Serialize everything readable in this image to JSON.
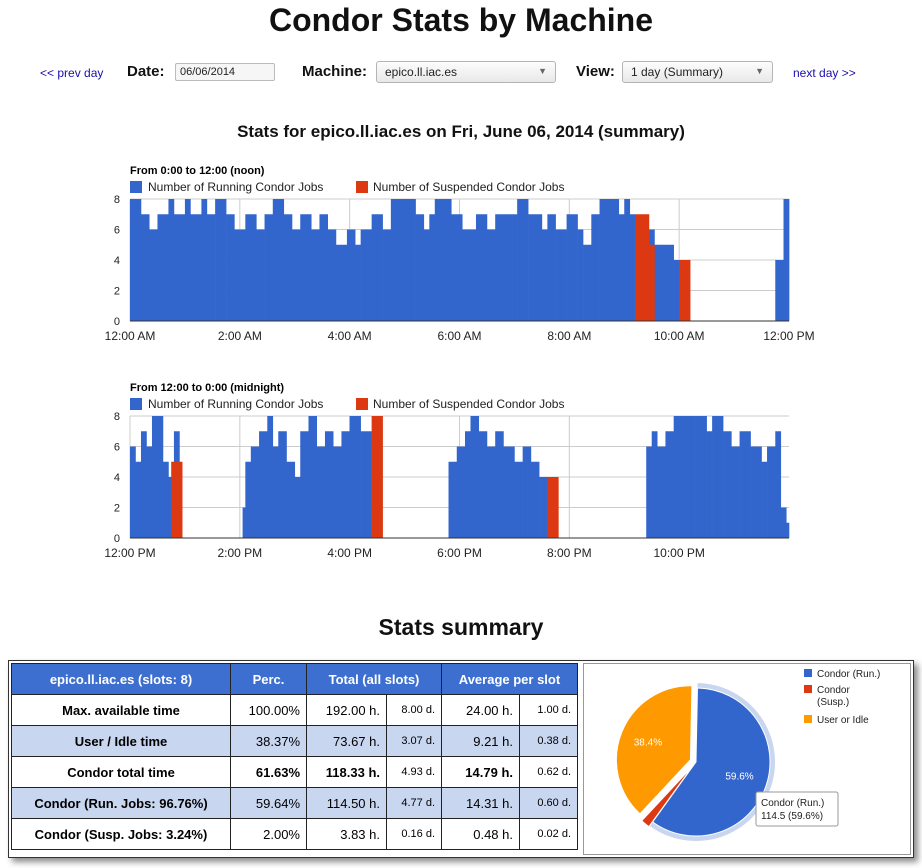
{
  "page": {
    "title": "Condor Stats by Machine"
  },
  "nav": {
    "prev_label": "<< prev day",
    "next_label": "next day >>",
    "date_label": "Date:",
    "date_value": "06/06/2014",
    "machine_label": "Machine:",
    "machine_selected": "epico.ll.iac.es",
    "view_label": "View:",
    "view_selected": "1 day (Summary)"
  },
  "stats_title": "Stats for epico.ll.iac.es on Fri, June 06, 2014 (summary)",
  "charts": [
    {
      "heading": "From 0:00 to 12:00 (noon)",
      "legend": [
        "Number of Running Condor Jobs",
        "Number of Suspended Condor Jobs"
      ]
    },
    {
      "heading": "From 12:00 to 0:00 (midnight)",
      "legend": [
        "Number of Running Condor Jobs",
        "Number of Suspended Condor Jobs"
      ]
    }
  ],
  "colors": {
    "running": "#3366cc",
    "suspended": "#dc3912",
    "idle": "#ff9900",
    "header": "#3d6fd0",
    "alt_row": "#c9d6f0"
  },
  "chart_data": [
    {
      "type": "area",
      "title": "From 0:00 to 12:00 (noon)",
      "x_ticks": [
        "12:00 AM",
        "2:00 AM",
        "4:00 AM",
        "6:00 AM",
        "8:00 AM",
        "10:00 AM",
        "12:00 PM"
      ],
      "y_ticks": [
        "0",
        "2",
        "4",
        "6",
        "8"
      ],
      "ylim": [
        0,
        8
      ],
      "xlim_hours": [
        0,
        12
      ],
      "series": [
        {
          "name": "Number of Running Condor Jobs",
          "segments": [
            [
              0.0,
              0.2,
              8
            ],
            [
              0.2,
              0.35,
              7
            ],
            [
              0.35,
              0.5,
              6
            ],
            [
              0.5,
              0.7,
              7
            ],
            [
              0.7,
              0.8,
              8
            ],
            [
              0.8,
              1.0,
              7
            ],
            [
              1.0,
              1.1,
              8
            ],
            [
              1.1,
              1.3,
              7
            ],
            [
              1.3,
              1.4,
              8
            ],
            [
              1.4,
              1.55,
              7
            ],
            [
              1.55,
              1.75,
              8
            ],
            [
              1.75,
              1.9,
              7
            ],
            [
              1.9,
              2.1,
              6
            ],
            [
              2.1,
              2.3,
              7
            ],
            [
              2.3,
              2.45,
              6
            ],
            [
              2.45,
              2.6,
              7
            ],
            [
              2.6,
              2.8,
              8
            ],
            [
              2.8,
              2.95,
              7
            ],
            [
              2.95,
              3.1,
              6
            ],
            [
              3.1,
              3.3,
              7
            ],
            [
              3.3,
              3.45,
              6
            ],
            [
              3.45,
              3.6,
              7
            ],
            [
              3.6,
              3.75,
              6
            ],
            [
              3.75,
              3.95,
              5
            ],
            [
              3.95,
              4.1,
              6
            ],
            [
              4.1,
              4.2,
              5
            ],
            [
              4.2,
              4.4,
              6
            ],
            [
              4.4,
              4.6,
              7
            ],
            [
              4.6,
              4.75,
              6
            ],
            [
              4.75,
              5.2,
              8
            ],
            [
              5.2,
              5.35,
              7
            ],
            [
              5.35,
              5.45,
              6
            ],
            [
              5.45,
              5.55,
              7
            ],
            [
              5.55,
              5.85,
              8
            ],
            [
              5.85,
              6.05,
              7
            ],
            [
              6.05,
              6.3,
              6
            ],
            [
              6.3,
              6.5,
              7
            ],
            [
              6.5,
              6.65,
              6
            ],
            [
              6.65,
              6.85,
              7
            ],
            [
              6.85,
              7.05,
              7
            ],
            [
              7.05,
              7.25,
              8
            ],
            [
              7.25,
              7.5,
              7
            ],
            [
              7.5,
              7.6,
              6
            ],
            [
              7.6,
              7.75,
              7
            ],
            [
              7.75,
              7.95,
              6
            ],
            [
              7.95,
              8.15,
              7
            ],
            [
              8.15,
              8.25,
              6
            ],
            [
              8.25,
              8.4,
              5
            ],
            [
              8.4,
              8.55,
              7
            ],
            [
              8.55,
              8.9,
              8
            ],
            [
              8.9,
              9.0,
              7
            ],
            [
              9.0,
              9.1,
              8
            ],
            [
              9.1,
              9.2,
              7
            ],
            [
              9.45,
              9.55,
              6
            ],
            [
              9.55,
              9.7,
              5
            ],
            [
              9.7,
              9.9,
              5
            ],
            [
              9.9,
              10.0,
              4
            ],
            [
              11.75,
              11.9,
              4
            ],
            [
              11.9,
              12.0,
              8
            ]
          ]
        },
        {
          "name": "Number of Suspended Condor Jobs",
          "segments": [
            [
              9.2,
              9.45,
              7
            ],
            [
              9.45,
              9.55,
              5
            ],
            [
              10.0,
              10.2,
              4
            ]
          ]
        }
      ]
    },
    {
      "type": "area",
      "title": "From 12:00 to 0:00 (midnight)",
      "x_ticks": [
        "12:00 PM",
        "2:00 PM",
        "4:00 PM",
        "6:00 PM",
        "8:00 PM",
        "10:00 PM"
      ],
      "y_ticks": [
        "0",
        "2",
        "4",
        "6",
        "8"
      ],
      "ylim": [
        0,
        8
      ],
      "xlim_hours": [
        12,
        24
      ],
      "series": [
        {
          "name": "Number of Running Condor Jobs",
          "segments": [
            [
              12.0,
              12.1,
              6
            ],
            [
              12.1,
              12.2,
              5
            ],
            [
              12.2,
              12.3,
              7
            ],
            [
              12.3,
              12.4,
              6
            ],
            [
              12.4,
              12.5,
              8
            ],
            [
              12.5,
              12.6,
              8
            ],
            [
              12.6,
              12.7,
              5
            ],
            [
              12.7,
              12.8,
              4
            ],
            [
              12.8,
              12.9,
              7
            ],
            [
              14.05,
              14.1,
              2
            ],
            [
              14.1,
              14.2,
              5
            ],
            [
              14.2,
              14.35,
              6
            ],
            [
              14.35,
              14.5,
              7
            ],
            [
              14.5,
              14.6,
              8
            ],
            [
              14.6,
              14.7,
              6
            ],
            [
              14.7,
              14.85,
              7
            ],
            [
              14.85,
              15.0,
              5
            ],
            [
              15.0,
              15.1,
              4
            ],
            [
              15.1,
              15.25,
              7
            ],
            [
              15.25,
              15.4,
              8
            ],
            [
              15.4,
              15.55,
              6
            ],
            [
              15.55,
              15.7,
              7
            ],
            [
              15.7,
              15.85,
              6
            ],
            [
              15.85,
              16.0,
              7
            ],
            [
              16.0,
              16.2,
              8
            ],
            [
              16.2,
              16.4,
              7
            ],
            [
              17.8,
              17.95,
              5
            ],
            [
              17.95,
              18.1,
              6
            ],
            [
              18.1,
              18.2,
              7
            ],
            [
              18.2,
              18.35,
              8
            ],
            [
              18.35,
              18.5,
              7
            ],
            [
              18.5,
              18.65,
              6
            ],
            [
              18.65,
              18.8,
              7
            ],
            [
              18.8,
              19.0,
              6
            ],
            [
              19.0,
              19.15,
              5
            ],
            [
              19.15,
              19.3,
              6
            ],
            [
              19.3,
              19.45,
              5
            ],
            [
              19.45,
              19.6,
              4
            ],
            [
              21.4,
              21.5,
              6
            ],
            [
              21.5,
              21.6,
              7
            ],
            [
              21.6,
              21.75,
              6
            ],
            [
              21.75,
              21.9,
              7
            ],
            [
              21.9,
              22.1,
              8
            ],
            [
              22.1,
              22.3,
              8
            ],
            [
              22.3,
              22.5,
              8
            ],
            [
              22.5,
              22.6,
              7
            ],
            [
              22.6,
              22.8,
              8
            ],
            [
              22.8,
              22.95,
              7
            ],
            [
              22.95,
              23.1,
              6
            ],
            [
              23.1,
              23.3,
              7
            ],
            [
              23.3,
              23.5,
              6
            ],
            [
              23.5,
              23.6,
              5
            ],
            [
              23.6,
              23.75,
              6
            ],
            [
              23.75,
              23.85,
              7
            ],
            [
              23.85,
              23.95,
              2
            ],
            [
              23.95,
              24.0,
              1
            ]
          ]
        },
        {
          "name": "Number of Suspended Condor Jobs",
          "segments": [
            [
              12.75,
              12.95,
              5
            ],
            [
              16.4,
              16.6,
              8
            ],
            [
              19.6,
              19.8,
              4
            ]
          ]
        }
      ]
    },
    {
      "type": "pie",
      "labels": [
        "Condor (Run.)",
        "Condor (Susp.)",
        "User or Idle"
      ],
      "values": [
        114.5,
        3.83,
        73.67
      ],
      "slice_labels": [
        "59.6%",
        "",
        "38.4%"
      ],
      "tooltip": {
        "title": "Condor (Run.)",
        "value": "114.5 (59.6%)"
      },
      "legend_position": "right"
    }
  ],
  "summary": {
    "title": "Stats summary",
    "headers": [
      "epico.ll.iac.es (slots: 8)",
      "Perc.",
      "Total (all slots)",
      "Average per slot"
    ],
    "rows": [
      [
        "Max. available time",
        "100.00%",
        "192.00 h.",
        "8.00 d.",
        "24.00 h.",
        "1.00 d."
      ],
      [
        "User / Idle time",
        "38.37%",
        "73.67 h.",
        "3.07 d.",
        "9.21 h.",
        "0.38 d."
      ],
      [
        "Condor total time",
        "61.63%",
        "118.33 h.",
        "4.93 d.",
        "14.79 h.",
        "0.62 d."
      ],
      [
        "Condor (Run. Jobs: 96.76%)",
        "59.64%",
        "114.50 h.",
        "4.77 d.",
        "14.31 h.",
        "0.60 d."
      ],
      [
        "Condor (Susp. Jobs: 3.24%)",
        "2.00%",
        "3.83 h.",
        "0.16 d.",
        "0.48 h.",
        "0.02 d."
      ]
    ]
  }
}
